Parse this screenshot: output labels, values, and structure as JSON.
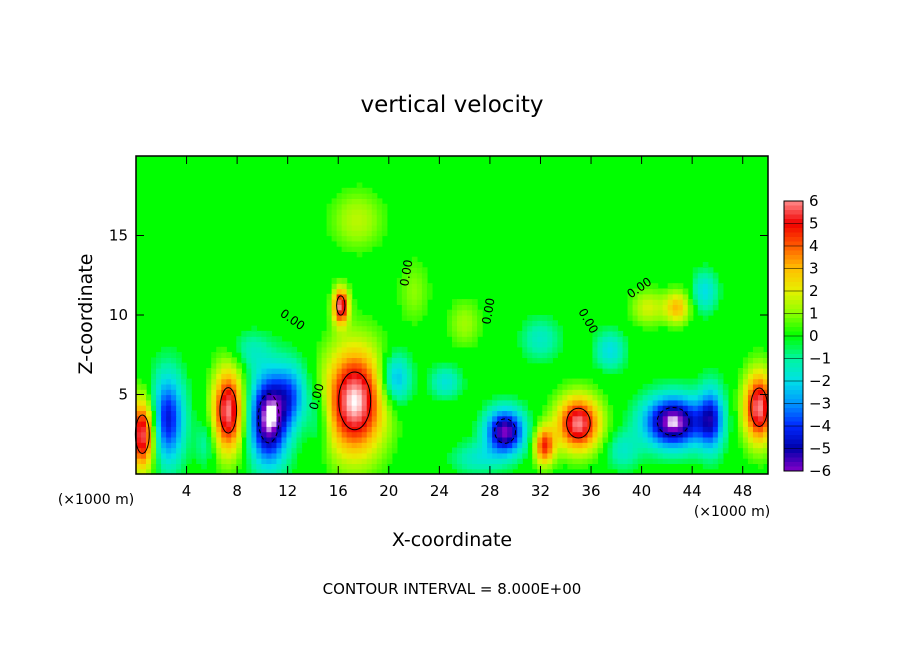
{
  "chart_data": {
    "type": "heatmap",
    "title": "vertical velocity",
    "xlabel": "X-coordinate",
    "ylabel": "Z-coordinate",
    "x_unit_left": "(×1000 m)",
    "x_unit_right": "(×1000 m)",
    "footer": "CONTOUR INTERVAL = 8.000E+00",
    "xlim": [
      0,
      50
    ],
    "ylim": [
      0,
      20
    ],
    "x_ticks": [
      {
        "value": 4,
        "label": "4"
      },
      {
        "value": 8,
        "label": "8"
      },
      {
        "value": 12,
        "label": "12"
      },
      {
        "value": 16,
        "label": "16"
      },
      {
        "value": 20,
        "label": "20"
      },
      {
        "value": 24,
        "label": "24"
      },
      {
        "value": 28,
        "label": "28"
      },
      {
        "value": 32,
        "label": "32"
      },
      {
        "value": 36,
        "label": "36"
      },
      {
        "value": 40,
        "label": "40"
      },
      {
        "value": 44,
        "label": "44"
      },
      {
        "value": 48,
        "label": "48"
      }
    ],
    "y_ticks": [
      {
        "value": 5,
        "label": "5"
      },
      {
        "value": 10,
        "label": "10"
      },
      {
        "value": 15,
        "label": "15"
      }
    ],
    "colorbar": {
      "min": -6,
      "max": 6,
      "labels": [
        "6",
        "5",
        "4",
        "3",
        "2",
        "1",
        "0",
        "−1",
        "−2",
        "−3",
        "−4",
        "−5",
        "−6"
      ]
    },
    "contour_labels": [
      "0.00",
      "0.00",
      "0.00",
      "0.00",
      "0.00",
      "0.00"
    ],
    "cells": [
      {
        "x": 0.5,
        "z": 2.5,
        "sx": 1.0,
        "sz": 2.2,
        "w": 6
      },
      {
        "x": 2.5,
        "z": 3.5,
        "sx": 1.3,
        "sz": 2.8,
        "w": -4.5
      },
      {
        "x": 7.3,
        "z": 4.0,
        "sx": 1.2,
        "sz": 2.6,
        "w": 6
      },
      {
        "x": 10.5,
        "z": 3.5,
        "sx": 1.5,
        "sz": 2.8,
        "w": -6.5
      },
      {
        "x": 12.3,
        "z": 5.0,
        "sx": 1.3,
        "sz": 2.0,
        "w": -3
      },
      {
        "x": 17.3,
        "z": 4.6,
        "sx": 2.3,
        "sz": 3.3,
        "w": 6.5
      },
      {
        "x": 16.2,
        "z": 10.6,
        "sx": 0.6,
        "sz": 1.1,
        "w": 6
      },
      {
        "x": 20.5,
        "z": 6.0,
        "sx": 1.2,
        "sz": 1.6,
        "w": -3
      },
      {
        "x": 24.5,
        "z": 5.8,
        "sx": 1.2,
        "sz": 1.0,
        "w": -1.8
      },
      {
        "x": 29.2,
        "z": 2.7,
        "sx": 1.5,
        "sz": 1.4,
        "w": -6
      },
      {
        "x": 32.3,
        "z": 1.8,
        "sx": 0.8,
        "sz": 1.2,
        "w": 4.5
      },
      {
        "x": 35.0,
        "z": 3.2,
        "sx": 1.7,
        "sz": 1.7,
        "w": 6
      },
      {
        "x": 42.5,
        "z": 3.3,
        "sx": 2.3,
        "sz": 1.6,
        "w": -6.5
      },
      {
        "x": 45.5,
        "z": 3.5,
        "sx": 1.0,
        "sz": 2.0,
        "w": -4
      },
      {
        "x": 49.3,
        "z": 4.2,
        "sx": 1.2,
        "sz": 2.2,
        "w": 6
      },
      {
        "x": 42.8,
        "z": 10.5,
        "sx": 1.0,
        "sz": 1.0,
        "w": 3
      },
      {
        "x": 40.5,
        "z": 10.5,
        "sx": 1.3,
        "sz": 1.1,
        "w": 1.8
      },
      {
        "x": 45.0,
        "z": 11.5,
        "sx": 1.0,
        "sz": 1.3,
        "w": -2
      },
      {
        "x": 37.5,
        "z": 7.8,
        "sx": 1.2,
        "sz": 1.2,
        "w": -2
      },
      {
        "x": 32.0,
        "z": 8.5,
        "sx": 1.5,
        "sz": 1.3,
        "w": -1.5
      },
      {
        "x": 17.5,
        "z": 16.0,
        "sx": 2.0,
        "sz": 1.8,
        "w": 1.5
      },
      {
        "x": 9.0,
        "z": 7.8,
        "sx": 1.5,
        "sz": 1.2,
        "w": -1.2
      },
      {
        "x": 26.0,
        "z": 9.5,
        "sx": 1.3,
        "sz": 1.5,
        "w": 1.2
      },
      {
        "x": 22.0,
        "z": 11.5,
        "sx": 1.2,
        "sz": 2.0,
        "w": 1
      },
      {
        "x": 27.0,
        "z": 1.0,
        "sx": 2.0,
        "sz": 1.0,
        "w": -1.5
      },
      {
        "x": 38.5,
        "z": 1.5,
        "sx": 1.3,
        "sz": 1.2,
        "w": -1.5
      },
      {
        "x": 5.5,
        "z": 2.0,
        "sx": 0.8,
        "sz": 1.5,
        "w": -1.2
      },
      {
        "x": 14.5,
        "z": 3.5,
        "sx": 0.9,
        "sz": 2.0,
        "w": -1.5
      }
    ]
  }
}
